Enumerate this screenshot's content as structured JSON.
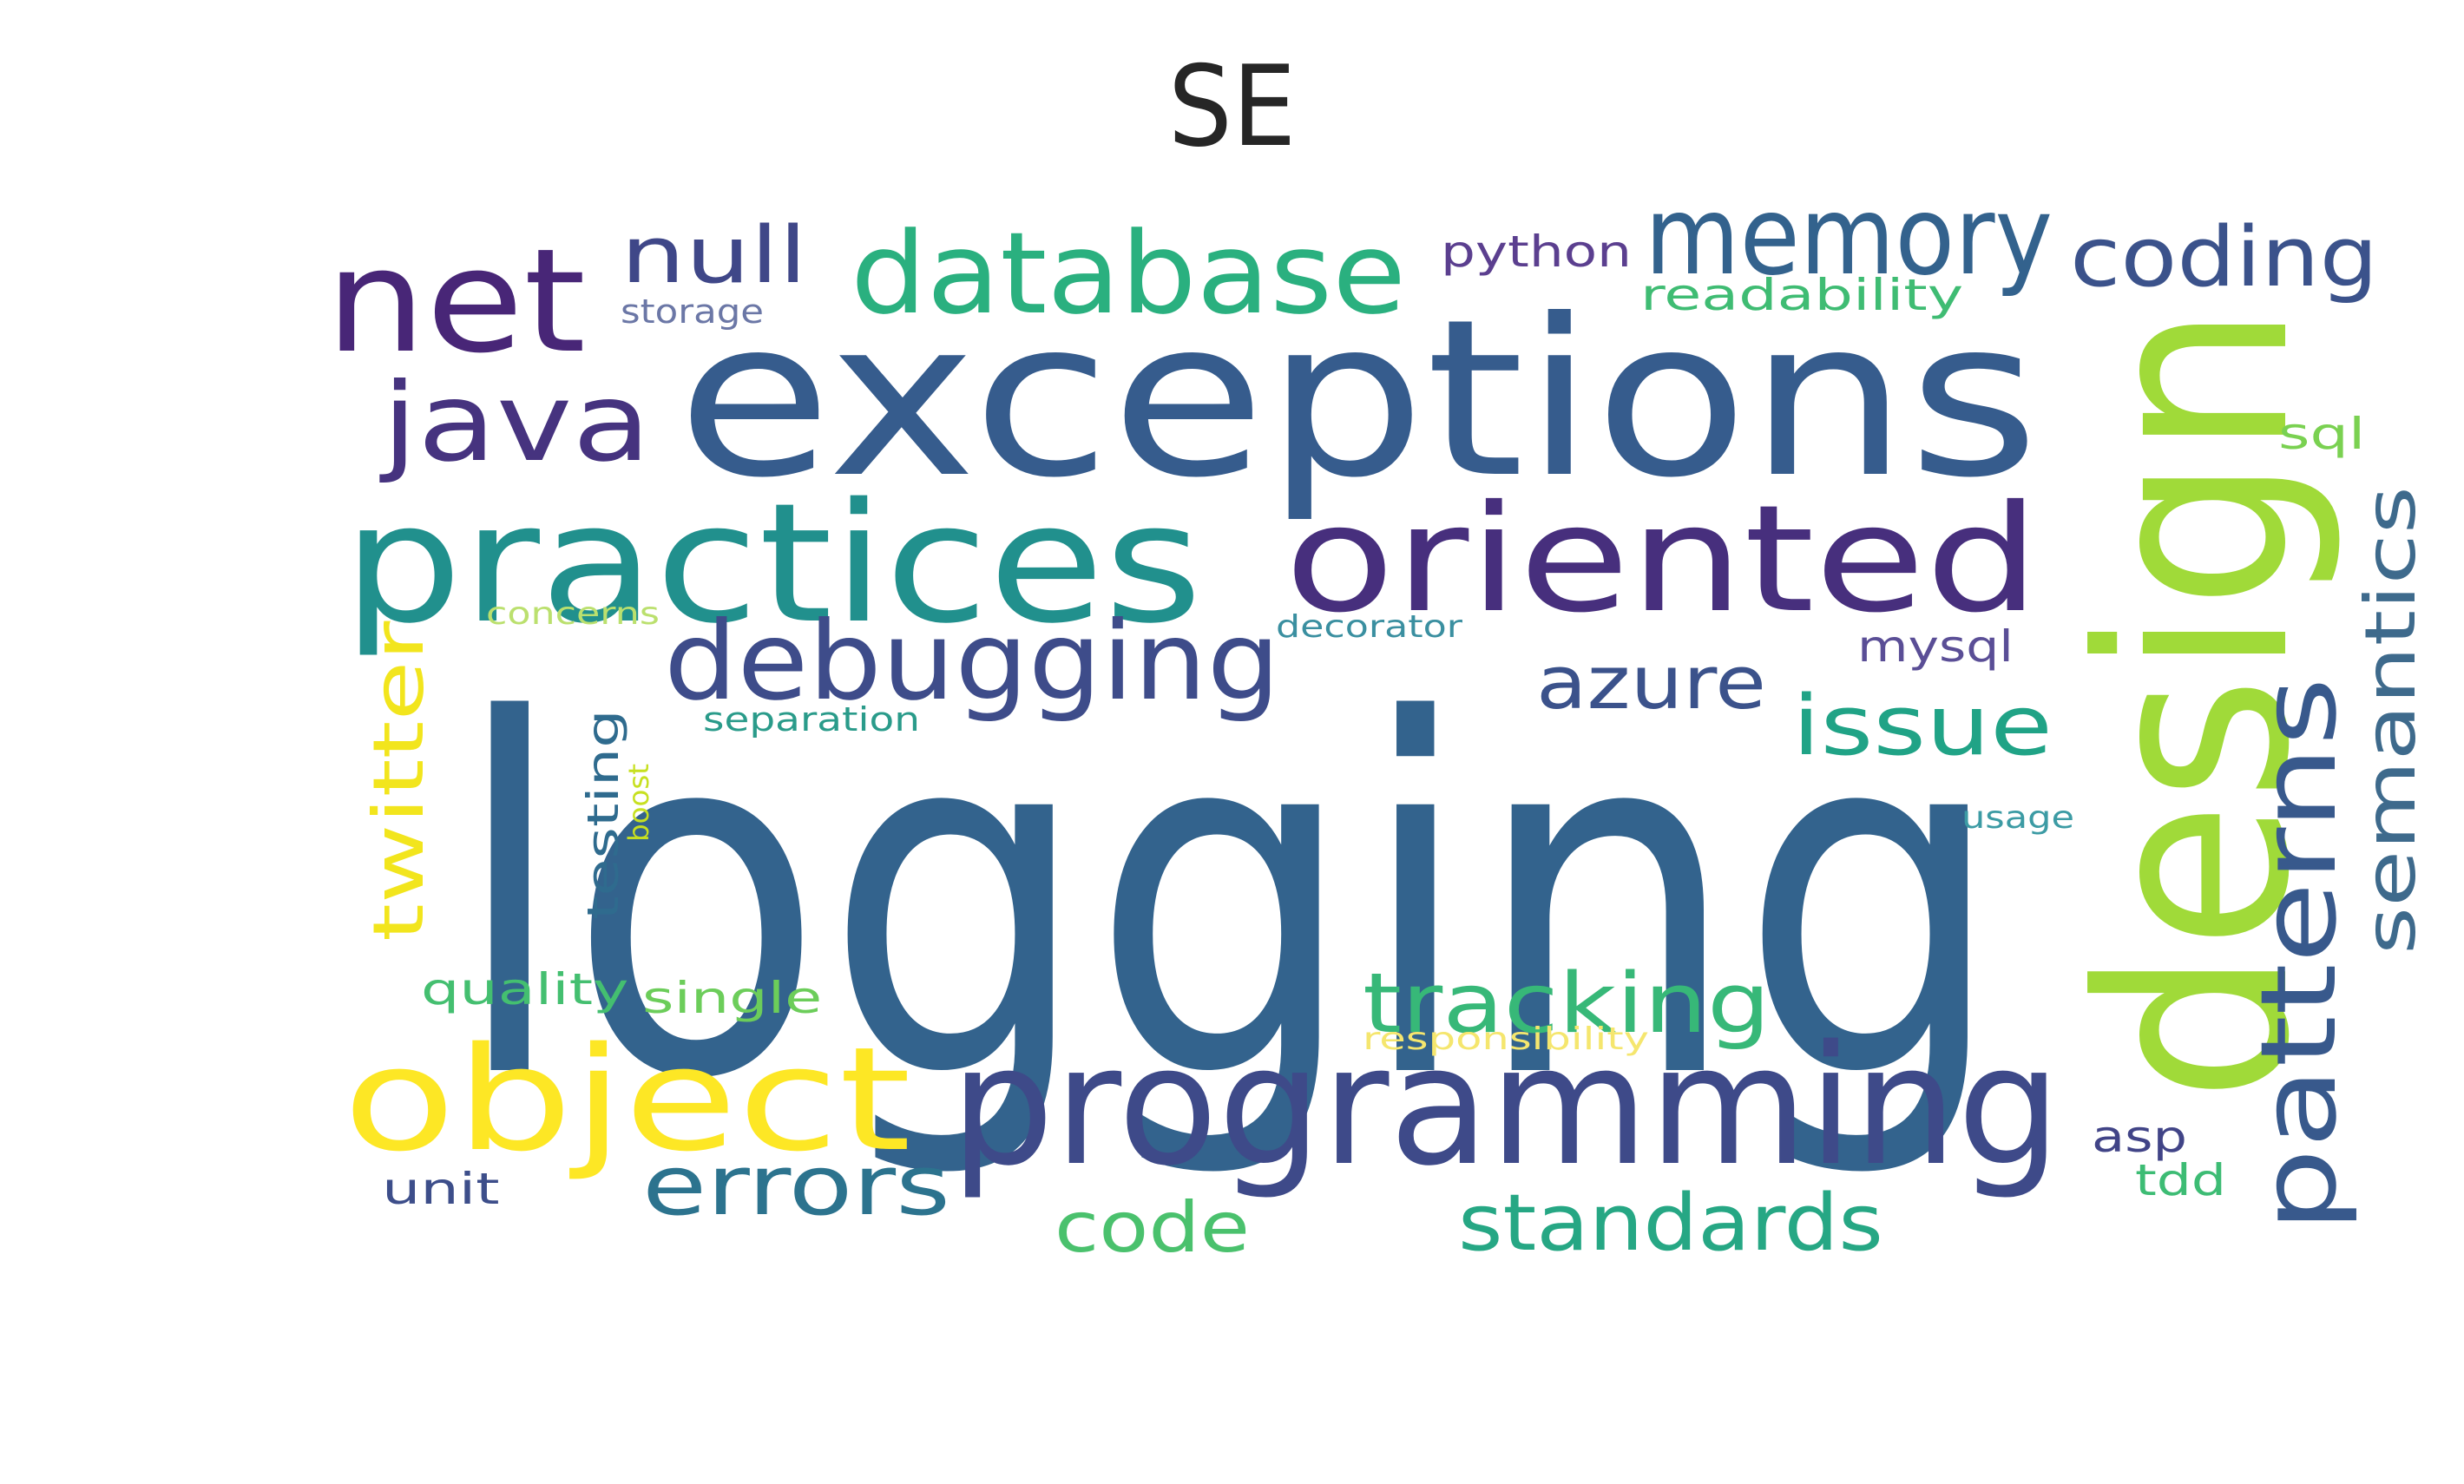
{
  "title": "SE",
  "words": [
    {
      "text": "logging",
      "color": "#33638d"
    },
    {
      "text": "exceptions",
      "color": "#365c8d"
    },
    {
      "text": "design",
      "color": "#a0da39"
    },
    {
      "text": "programming",
      "color": "#3e4a89"
    },
    {
      "text": "practices",
      "color": "#21908d"
    },
    {
      "text": "oriented",
      "color": "#472f7d"
    },
    {
      "text": "object",
      "color": "#fde725"
    },
    {
      "text": "net",
      "color": "#482677"
    },
    {
      "text": "database",
      "color": "#2ab07f"
    },
    {
      "text": "memory",
      "color": "#33628d"
    },
    {
      "text": "debugging",
      "color": "#3e4c8a"
    },
    {
      "text": "java",
      "color": "#46337f"
    },
    {
      "text": "patterns",
      "color": "#38598c"
    },
    {
      "text": "coding",
      "color": "#3b528b"
    },
    {
      "text": "tracking",
      "color": "#37b878"
    },
    {
      "text": "errors",
      "color": "#2c738e"
    },
    {
      "text": "standards",
      "color": "#26a784"
    },
    {
      "text": "semantics",
      "color": "#3e6a8c"
    },
    {
      "text": "twitter",
      "color": "#f2e51d"
    },
    {
      "text": "issue",
      "color": "#20a386"
    },
    {
      "text": "azure",
      "color": "#3b528b"
    },
    {
      "text": "code",
      "color": "#4ac16d"
    },
    {
      "text": "null",
      "color": "#3f4788"
    },
    {
      "text": "python",
      "color": "#5b3f8f"
    },
    {
      "text": "readability",
      "color": "#3fbc73"
    },
    {
      "text": "quality",
      "color": "#44bf70"
    },
    {
      "text": "single",
      "color": "#6ccd5a"
    },
    {
      "text": "testing",
      "color": "#2f6b8e"
    },
    {
      "text": "mysql",
      "color": "#5a4e96"
    },
    {
      "text": "sql",
      "color": "#7ad151"
    },
    {
      "text": "asp",
      "color": "#414487"
    },
    {
      "text": "tdd",
      "color": "#3dbc74"
    },
    {
      "text": "unit",
      "color": "#3d4e8a"
    },
    {
      "text": "storage",
      "color": "#6b77a6"
    },
    {
      "text": "separation",
      "color": "#2a9b8a"
    },
    {
      "text": "decorator",
      "color": "#3a8fa0"
    },
    {
      "text": "boost",
      "color": "#c7e020"
    },
    {
      "text": "usage",
      "color": "#3c9ba4"
    },
    {
      "text": "responsibility",
      "color": "#f5e66e"
    },
    {
      "text": "concerns",
      "color": "#bbe06e"
    }
  ]
}
